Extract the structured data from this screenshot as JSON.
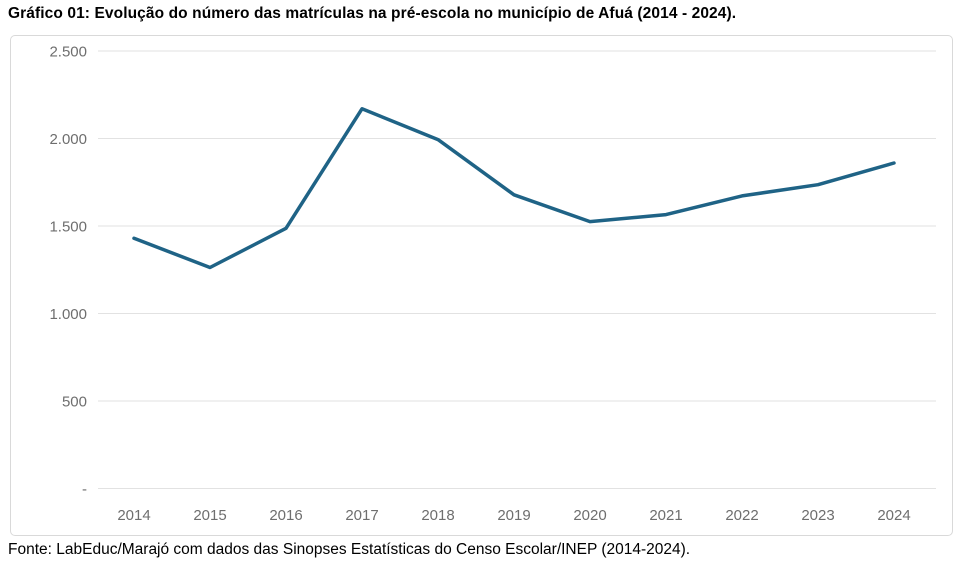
{
  "page": {
    "title": "Gráfico 01: Evolução do número das matrículas na pré-escola no município de Afuá (2014 - 2024).",
    "source": "Fonte: LabEduc/Marajó com dados das Sinopses Estatísticas do Censo Escolar/INEP (2014-2024)."
  },
  "colors": {
    "line": "#1f6386",
    "gridline": "#e2e2e2",
    "axis_text": "#6e6e6e",
    "frame_border": "#d9d9d9",
    "background": "#ffffff",
    "title_text": "#000000"
  },
  "chart_data": {
    "type": "line",
    "title": "Gráfico 01: Evolução do número das matrículas na pré-escola no município de Afuá (2014 - 2024).",
    "source": "Fonte: LabEduc/Marajó com dados das Sinopses Estatísticas do Censo Escolar/INEP (2014-2024).",
    "categories": [
      "2014",
      "2015",
      "2016",
      "2017",
      "2018",
      "2019",
      "2020",
      "2021",
      "2022",
      "2023",
      "2024"
    ],
    "values": [
      1430,
      1263,
      1487,
      2170,
      1994,
      1678,
      1525,
      1565,
      1672,
      1736,
      1860
    ],
    "xlabel": "",
    "ylabel": "",
    "ylim": [
      0,
      2500
    ],
    "yticks": {
      "values": [
        2500,
        2000,
        1500,
        1000,
        500,
        0
      ],
      "labels": [
        "2.500",
        "2.000",
        "1.500",
        "1.000",
        "500",
        "-"
      ]
    },
    "grid": "horizontal",
    "legend": "none",
    "line_color": "#1f6386"
  }
}
